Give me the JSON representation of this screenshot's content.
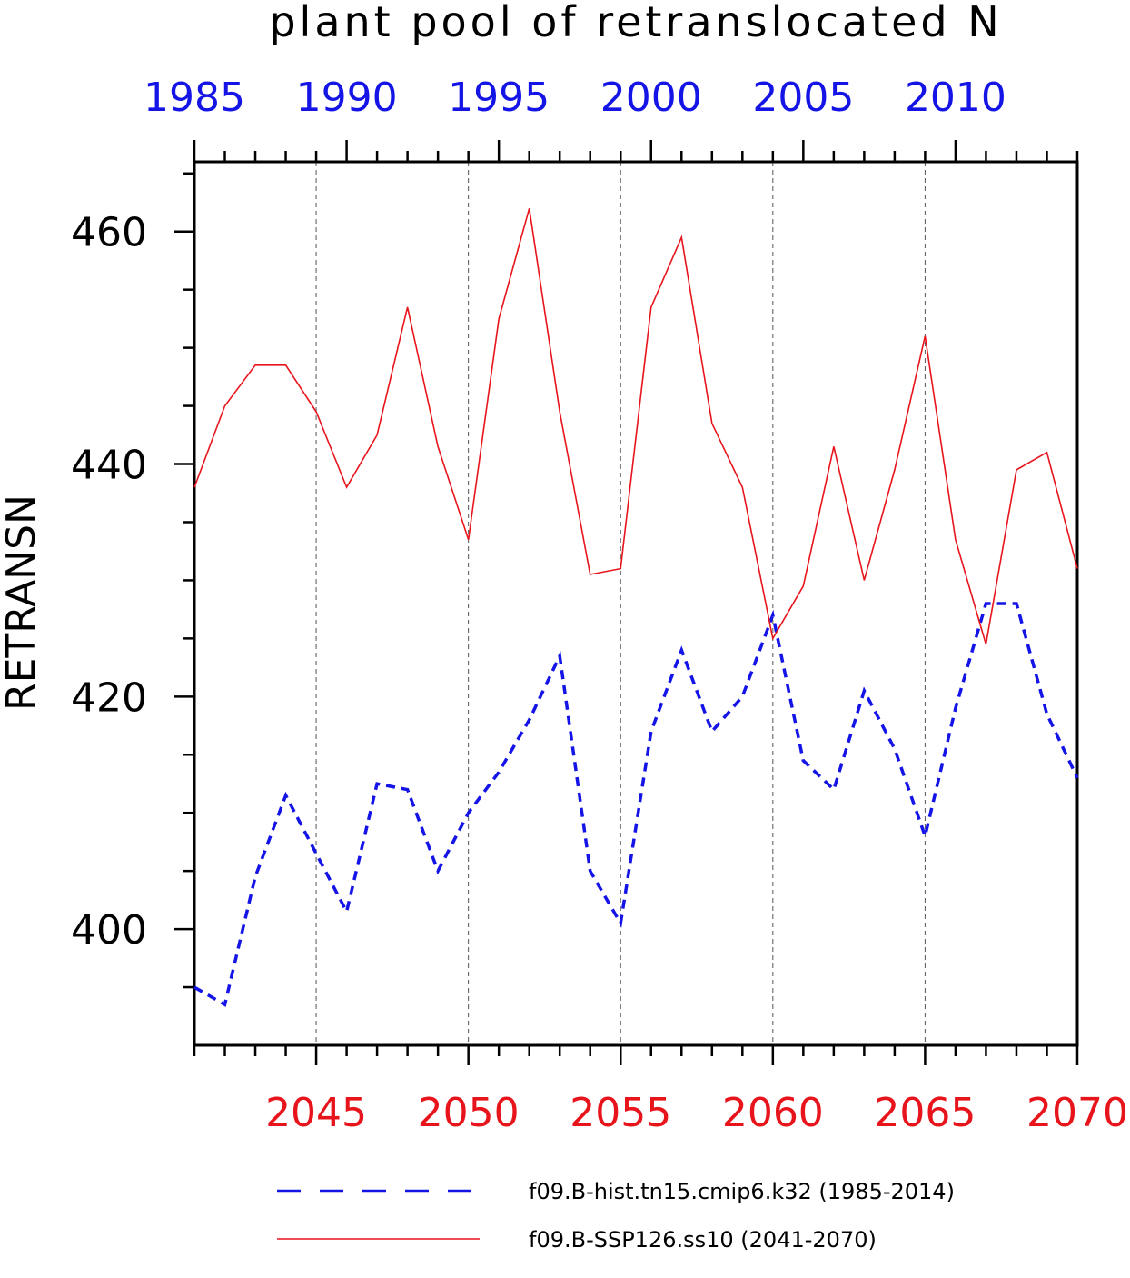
{
  "chart_data": {
    "type": "line",
    "title": "plant pool of retranslocated N",
    "ylabel": "RETRANSN",
    "ylim": [
      390,
      466
    ],
    "y_ticks": [
      400,
      420,
      440,
      460
    ],
    "grid": "dashed vertical lines at labeled bottom-axis years",
    "bottom_axis": {
      "xlim": [
        2041,
        2070
      ],
      "tick_labels": [
        "2045",
        "2050",
        "2055",
        "2060",
        "2065",
        "2070"
      ],
      "color": "#e8141c"
    },
    "top_axis": {
      "xlim": [
        1985,
        2014
      ],
      "tick_labels": [
        "1985",
        "1990",
        "1995",
        "2000",
        "2005",
        "2010"
      ],
      "color": "#1414e6"
    },
    "legend_position": "bottom",
    "series": [
      {
        "name": "f09.B-hist.tn15.cmip6.k32 (1985-2014)",
        "color": "#1414e6",
        "style": "dashed",
        "axis": "top",
        "x": [
          1985,
          1986,
          1987,
          1988,
          1989,
          1990,
          1991,
          1992,
          1993,
          1994,
          1995,
          1996,
          1997,
          1998,
          1999,
          2000,
          2001,
          2002,
          2003,
          2004,
          2005,
          2006,
          2007,
          2008,
          2009,
          2010,
          2011,
          2012,
          2013,
          2014
        ],
        "values": [
          395.0,
          393.5,
          404.5,
          411.5,
          406.5,
          401.5,
          412.5,
          412.0,
          405.0,
          410.0,
          413.5,
          418.0,
          423.5,
          405.0,
          400.5,
          417.0,
          424.0,
          417.0,
          420.0,
          427.0,
          414.5,
          412.0,
          420.5,
          415.5,
          408.0,
          419.0,
          428.0,
          428.0,
          418.5,
          413.0
        ]
      },
      {
        "name": "f09.B-SSP126.ss10 (2041-2070)",
        "color": "#e8141c",
        "style": "solid",
        "axis": "bottom",
        "x": [
          2041,
          2042,
          2043,
          2044,
          2045,
          2046,
          2047,
          2048,
          2049,
          2050,
          2051,
          2052,
          2053,
          2054,
          2055,
          2056,
          2057,
          2058,
          2059,
          2060,
          2061,
          2062,
          2063,
          2064,
          2065,
          2066,
          2067,
          2068,
          2069,
          2070
        ],
        "values": [
          438.0,
          445.0,
          448.5,
          448.5,
          444.5,
          438.0,
          442.5,
          453.5,
          441.5,
          433.5,
          452.5,
          462.0,
          444.5,
          430.5,
          431.0,
          453.5,
          459.5,
          443.5,
          438.0,
          425.0,
          429.5,
          441.5,
          430.0,
          439.5,
          451.0,
          433.5,
          424.5,
          439.5,
          441.0,
          431.0
        ]
      }
    ]
  }
}
